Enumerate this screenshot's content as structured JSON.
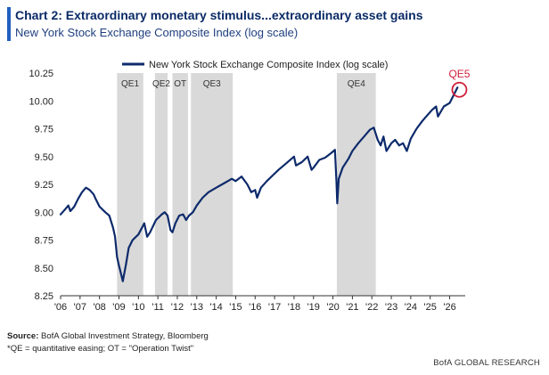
{
  "header": {
    "title": "Chart 2: Extraordinary monetary stimulus...extraordinary asset gains",
    "subtitle": "New York Stock Exchange Composite Index (log scale)"
  },
  "footer": {
    "source_label": "Source:",
    "source_text": " BofA Global Investment Strategy, Bloomberg",
    "note": "*QE = quantitative easing; OT = \"Operation Twist\"",
    "brand": "BofA GLOBAL RESEARCH"
  },
  "colors": {
    "line": "#0d2a6b",
    "shade": "#d9d9d9",
    "highlight": "#d0203a",
    "accent": "#1f5fbf"
  },
  "chart_data": {
    "type": "line",
    "title": "",
    "xlabel": "",
    "ylabel": "",
    "scale": "log",
    "grid": false,
    "legend_position": "top-center",
    "ylim": [
      8.25,
      10.25
    ],
    "yticks": [
      8.25,
      8.5,
      8.75,
      9.0,
      9.25,
      9.5,
      9.75,
      10.0,
      10.25
    ],
    "ytick_labels": [
      "8.25",
      "8.50",
      "8.75",
      "9.00",
      "9.25",
      "9.50",
      "9.75",
      "10.00",
      "10.25"
    ],
    "xlim": [
      2006.0,
      2026.8
    ],
    "xticks": [
      2006,
      2007,
      2008,
      2009,
      2010,
      2011,
      2012,
      2013,
      2014,
      2015,
      2016,
      2017,
      2018,
      2019,
      2020,
      2021,
      2022,
      2023,
      2024,
      2025,
      2026
    ],
    "xtick_labels": [
      "'06",
      "'07",
      "'08",
      "'09",
      "'10",
      "'11",
      "'12",
      "'13",
      "'14",
      "'15",
      "'16",
      "'17",
      "'18",
      "'19",
      "'20",
      "'21",
      "'22",
      "'23",
      "'24",
      "'25",
      "'26"
    ],
    "shaded_periods": [
      {
        "label": "QE1",
        "start": 2008.9,
        "end": 2010.25
      },
      {
        "label": "QE2",
        "start": 2010.85,
        "end": 2011.5
      },
      {
        "label": "OT",
        "start": 2011.75,
        "end": 2012.55
      },
      {
        "label": "QE3",
        "start": 2012.7,
        "end": 2014.85
      },
      {
        "label": "QE4",
        "start": 2020.2,
        "end": 2022.2
      }
    ],
    "annotations": [
      {
        "label": "QE5",
        "x": 2026.5,
        "y": 10.1
      }
    ],
    "series": [
      {
        "name": "New York Stock Exchange Composite Index (log scale)",
        "x": [
          2006.0,
          2006.2,
          2006.4,
          2006.5,
          2006.7,
          2006.9,
          2007.1,
          2007.3,
          2007.5,
          2007.7,
          2007.8,
          2008.0,
          2008.3,
          2008.5,
          2008.7,
          2008.8,
          2008.9,
          2009.0,
          2009.1,
          2009.2,
          2009.35,
          2009.5,
          2009.7,
          2010.0,
          2010.3,
          2010.45,
          2010.6,
          2010.9,
          2011.2,
          2011.35,
          2011.5,
          2011.65,
          2011.75,
          2011.9,
          2012.1,
          2012.3,
          2012.45,
          2012.6,
          2012.8,
          2013.0,
          2013.3,
          2013.6,
          2014.0,
          2014.3,
          2014.6,
          2014.8,
          2015.0,
          2015.3,
          2015.6,
          2015.8,
          2016.0,
          2016.1,
          2016.3,
          2016.6,
          2016.9,
          2017.2,
          2017.6,
          2018.0,
          2018.1,
          2018.4,
          2018.7,
          2018.9,
          2019.0,
          2019.3,
          2019.6,
          2019.9,
          2020.1,
          2020.18,
          2020.22,
          2020.3,
          2020.5,
          2020.8,
          2021.0,
          2021.3,
          2021.6,
          2021.9,
          2022.1,
          2022.3,
          2022.45,
          2022.6,
          2022.75,
          2023.0,
          2023.2,
          2023.4,
          2023.6,
          2023.8,
          2024.0,
          2024.3,
          2024.6,
          2024.9,
          2025.1,
          2025.3,
          2025.4,
          2025.7,
          2026.0,
          2026.2,
          2026.4
        ],
        "values": [
          8.98,
          9.02,
          9.06,
          9.01,
          9.05,
          9.12,
          9.18,
          9.22,
          9.2,
          9.16,
          9.12,
          9.05,
          9.0,
          8.97,
          8.86,
          8.78,
          8.6,
          8.52,
          8.45,
          8.38,
          8.52,
          8.68,
          8.75,
          8.8,
          8.9,
          8.78,
          8.82,
          8.93,
          8.98,
          9.0,
          8.97,
          8.84,
          8.82,
          8.9,
          8.97,
          8.98,
          8.93,
          8.97,
          9.0,
          9.06,
          9.13,
          9.18,
          9.22,
          9.25,
          9.28,
          9.3,
          9.28,
          9.32,
          9.25,
          9.18,
          9.2,
          9.13,
          9.22,
          9.28,
          9.33,
          9.38,
          9.44,
          9.5,
          9.42,
          9.45,
          9.5,
          9.38,
          9.4,
          9.47,
          9.49,
          9.53,
          9.56,
          9.28,
          9.08,
          9.3,
          9.4,
          9.48,
          9.55,
          9.62,
          9.68,
          9.74,
          9.76,
          9.65,
          9.6,
          9.68,
          9.55,
          9.62,
          9.65,
          9.6,
          9.62,
          9.55,
          9.66,
          9.75,
          9.82,
          9.88,
          9.92,
          9.95,
          9.86,
          9.95,
          9.98,
          10.05,
          10.12
        ]
      }
    ]
  }
}
